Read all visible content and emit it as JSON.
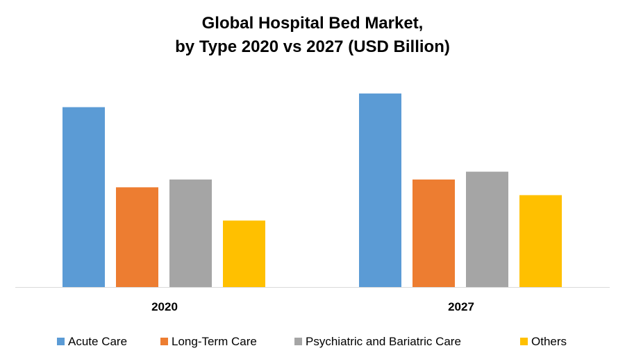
{
  "chart_data": {
    "type": "bar",
    "title_lines": [
      "Global Hospital Bed Market,",
      "by Type 2020 vs 2027 (USD Billion)"
    ],
    "categories": [
      "2020",
      "2027"
    ],
    "series": [
      {
        "name": "Acute Care",
        "color": "#5B9BD5",
        "values": [
          92,
          99
        ]
      },
      {
        "name": "Long-Term Care",
        "color": "#ED7D31",
        "values": [
          51,
          55
        ]
      },
      {
        "name": "Psychiatric and Bariatric Care",
        "color": "#A5A5A5",
        "values": [
          55,
          59
        ]
      },
      {
        "name": "Others",
        "color": "#FFC000",
        "values": [
          34,
          47
        ]
      }
    ],
    "ylim": [
      0,
      100
    ],
    "grid": false,
    "legend_position": "bottom",
    "xlabel": "",
    "ylabel": ""
  }
}
